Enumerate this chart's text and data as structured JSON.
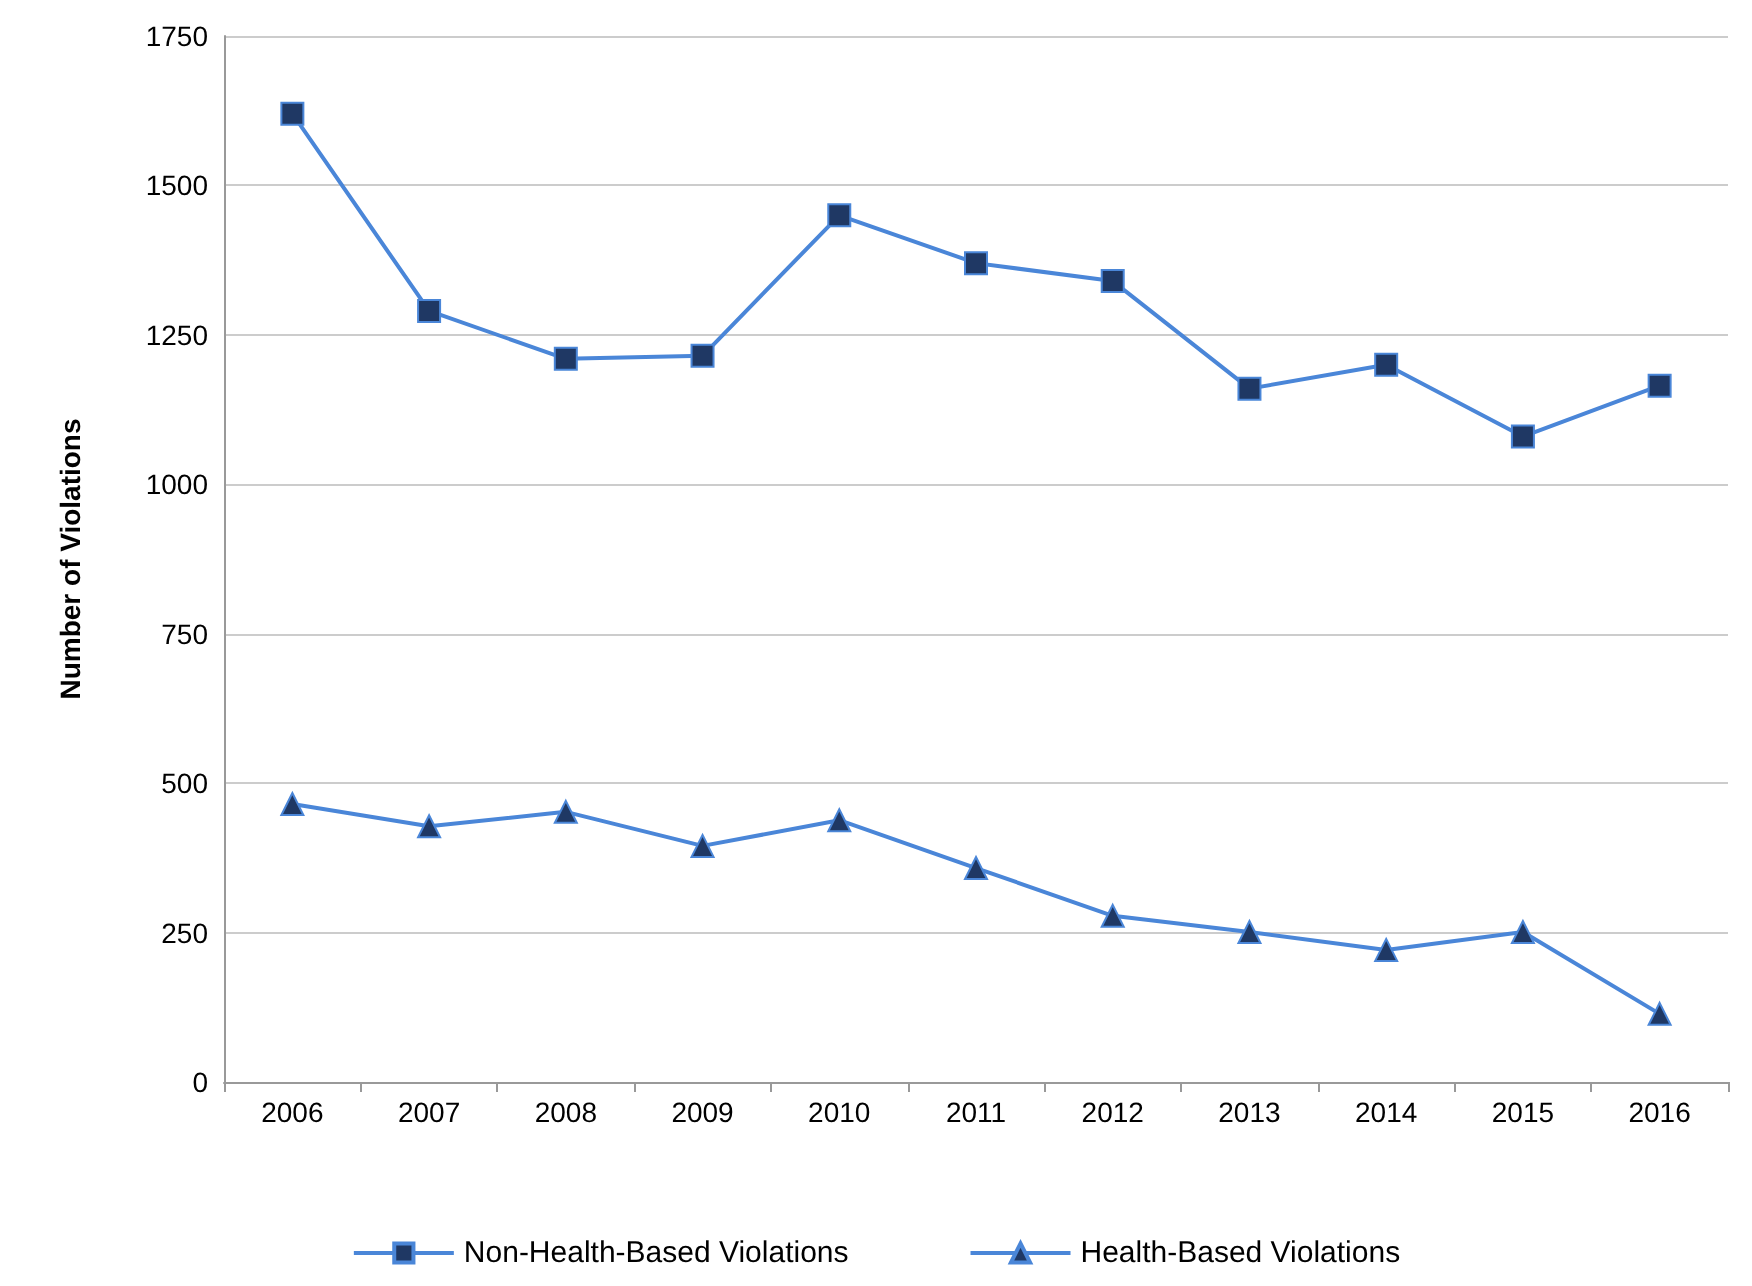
{
  "chart_data": {
    "type": "line",
    "ylabel": "Number of Violations",
    "categories": [
      "2006",
      "2007",
      "2008",
      "2009",
      "2010",
      "2011",
      "2012",
      "2013",
      "2014",
      "2015",
      "2016"
    ],
    "series": [
      {
        "name": "Non-Health-Based Violations",
        "color": "#4a86d8",
        "marker": "square",
        "values": [
          1620,
          1290,
          1210,
          1215,
          1450,
          1370,
          1340,
          1160,
          1200,
          1080,
          1165
        ]
      },
      {
        "name": "Health-Based Violations",
        "color": "#4a86d8",
        "marker": "triangle",
        "values": [
          465,
          428,
          452,
          395,
          438,
          358,
          278,
          251,
          221,
          251,
          114
        ]
      }
    ],
    "ylim": [
      0,
      1750
    ],
    "yticks": [
      0,
      250,
      500,
      750,
      1000,
      1250,
      1500,
      1750
    ],
    "grid": "y",
    "legend": "bottom"
  }
}
